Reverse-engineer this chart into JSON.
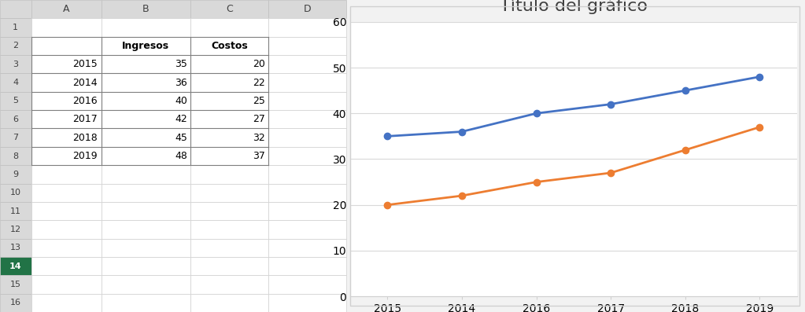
{
  "title": "Título del gráfico",
  "categories": [
    "2015",
    "2014",
    "2016",
    "2017",
    "2018",
    "2019"
  ],
  "ingresos": [
    35,
    36,
    40,
    42,
    45,
    48
  ],
  "costos": [
    20,
    22,
    25,
    27,
    32,
    37
  ],
  "ingresos_color": "#4472C4",
  "costos_color": "#ED7D31",
  "ylim": [
    0,
    60
  ],
  "yticks": [
    0,
    10,
    20,
    30,
    40,
    50,
    60
  ],
  "legend_ingresos": "Ingresos",
  "legend_costos": "Costos",
  "title_fontsize": 16,
  "axis_fontsize": 10,
  "legend_fontsize": 10,
  "background_color": "#FFFFFF",
  "chart_bg_color": "#FFFFFF",
  "grid_color": "#D9D9D9",
  "marker_size": 6,
  "line_width": 2.0,
  "excel_bg": "#F2F2F2",
  "excel_header_bg": "#BFBFBF"
}
